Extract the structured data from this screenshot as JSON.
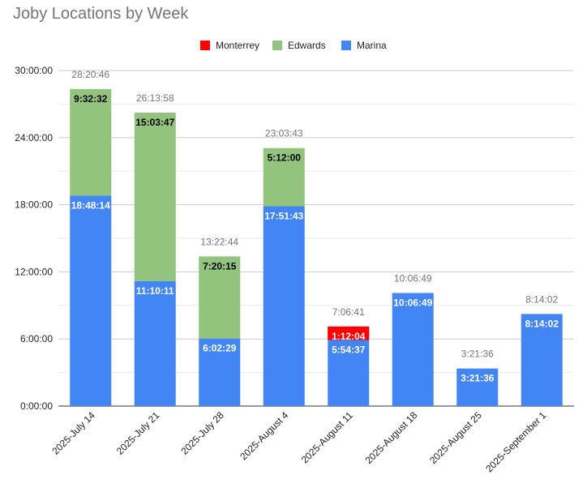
{
  "chart_data": {
    "type": "bar",
    "stacked": true,
    "title": "Joby Locations by Week",
    "legend_position": "top",
    "categories": [
      "2025-July 14",
      "2025-July 21",
      "2025-July 28",
      "2025-August 4",
      "2025-August 11",
      "2025-August 18",
      "2025-August 25",
      "2025-September 1"
    ],
    "y_ticks": [
      "0:00:00",
      "6:00:00",
      "12:00:00",
      "18:00:00",
      "24:00:00",
      "30:00:00"
    ],
    "ylim": [
      "0:00:00",
      "30:00:00"
    ],
    "grid": true,
    "series": [
      {
        "name": "Marina",
        "color": "#4285F4",
        "label_color": "#ffffff",
        "values": [
          "18:48:14",
          "11:10:11",
          "6:02:29",
          "17:51:43",
          "5:54:37",
          "10:06:49",
          "3:21:36",
          "8:14:02"
        ]
      },
      {
        "name": "Edwards",
        "color": "#93C47D",
        "label_color": "#000000",
        "values": [
          "9:32:32",
          "15:03:47",
          "7:20:15",
          "5:12:00",
          null,
          null,
          null,
          null
        ]
      },
      {
        "name": "Monterrey",
        "color": "#FF0000",
        "label_color": "#ffffff",
        "values": [
          null,
          null,
          null,
          null,
          "1:12:04",
          null,
          null,
          null
        ]
      }
    ],
    "legend_order": [
      "Monterrey",
      "Edwards",
      "Marina"
    ],
    "totals": [
      "28:20:46",
      "26:13:58",
      "13:22:44",
      "23:03:43",
      "7:06:41",
      "10:06:49",
      "3:21:36",
      "8:14:02"
    ]
  }
}
